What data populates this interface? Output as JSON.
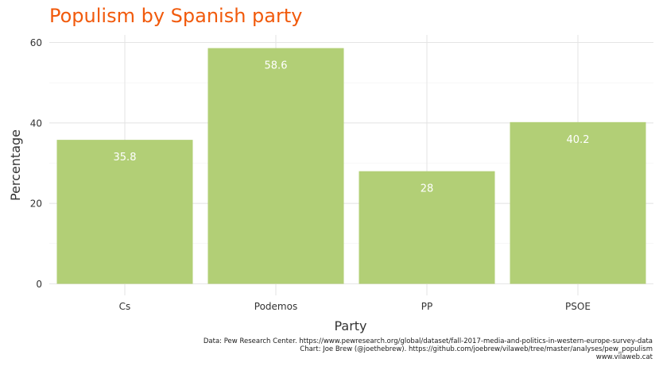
{
  "chart_data": {
    "type": "bar",
    "title": "Populism by Spanish party",
    "xlabel": "Party",
    "ylabel": "Percentage",
    "categories": [
      "Cs",
      "Podemos",
      "PP",
      "PSOE"
    ],
    "values": [
      35.8,
      58.6,
      28,
      40.2
    ],
    "data_labels": [
      "35.8",
      "58.6",
      "28",
      "40.2"
    ],
    "ylim": [
      0,
      62
    ],
    "yticks": [
      0,
      20,
      40,
      60
    ],
    "ytick_labels": [
      "0",
      "20",
      "40",
      "60"
    ],
    "grid": true,
    "legend": "none",
    "colors": {
      "bar": "#b2cf76",
      "title": "#f15a0c",
      "grid": "#e5e5e5",
      "data_label": "#ffffff"
    }
  },
  "caption": {
    "line1": "Data: Pew Research Center. https://www.pewresearch.org/global/dataset/fall-2017-media-and-politics-in-western-europe-survey-data",
    "line2": "Chart: Joe Brew (@joethebrew). https://github.com/joebrew/vilaweb/tree/master/analyses/pew_populism",
    "line3": "www.vilaweb.cat"
  }
}
